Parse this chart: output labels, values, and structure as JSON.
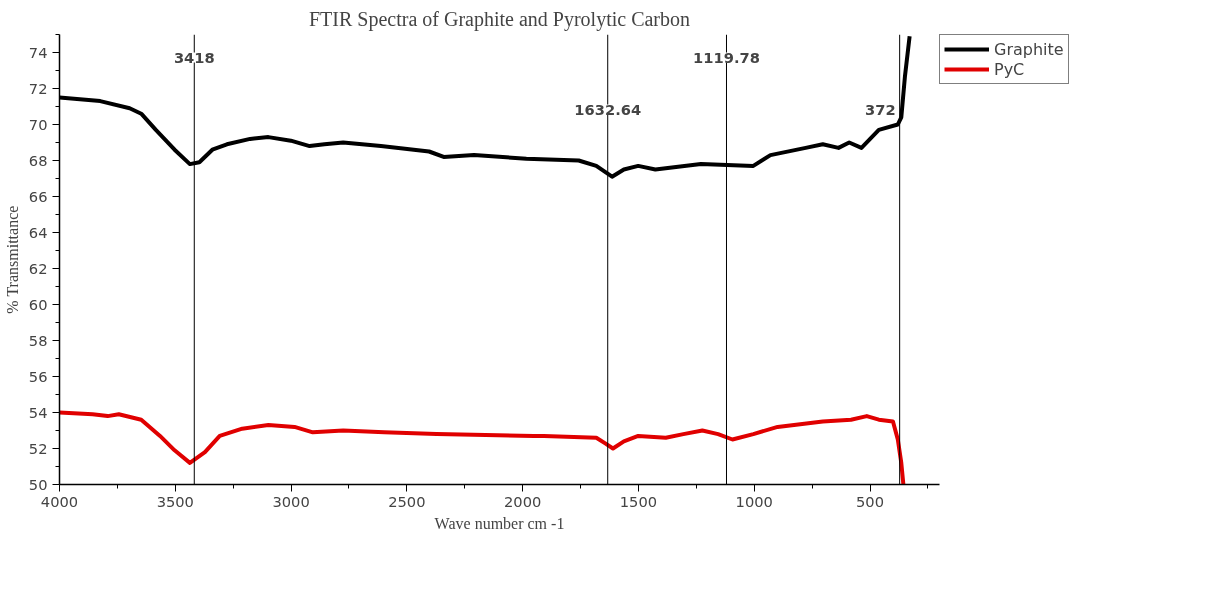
{
  "chart_data": {
    "type": "line",
    "title": "FTIR Spectra of Graphite and Pyrolytic Carbon",
    "xlabel": "Wave number cm -1",
    "ylabel": "% Transmittance",
    "xlim": [
      4000,
      200
    ],
    "ylim": [
      50,
      75
    ],
    "xticks": [
      4000,
      3500,
      3000,
      2500,
      2000,
      1500,
      1000,
      500
    ],
    "yticks": [
      50,
      52,
      54,
      56,
      58,
      60,
      62,
      64,
      66,
      68,
      70,
      72,
      74
    ],
    "grid": false,
    "legend": "top right",
    "line_style": "solid",
    "marker": "none",
    "ref_lines": [
      {
        "axis": "x",
        "value": 3418,
        "label": "3418"
      },
      {
        "axis": "x",
        "value": 1632.64,
        "label": "1632.64"
      },
      {
        "axis": "x",
        "value": 1119.78,
        "label": "1119.78"
      },
      {
        "axis": "x",
        "value": 372,
        "label": "372"
      }
    ],
    "series": [
      {
        "name": "Graphite",
        "color": "#000000",
        "x": [
          4000,
          3824,
          3697,
          3647,
          3584,
          3503,
          3437,
          3396,
          3340,
          3277,
          3177,
          3098,
          3001,
          2920,
          2856,
          2775,
          2612,
          2404,
          2341,
          2210,
          1984,
          1758,
          1682,
          1614,
          1563,
          1501,
          1427,
          1230,
          1004,
          930,
          778,
          704,
          636,
          590,
          537,
          462,
          380,
          365,
          349,
          329
        ],
        "values": [
          71.5,
          71.3,
          70.9,
          70.6,
          69.7,
          68.6,
          67.8,
          67.9,
          68.6,
          68.9,
          69.2,
          69.3,
          69.1,
          68.8,
          68.9,
          69.0,
          68.8,
          68.5,
          68.2,
          68.3,
          68.1,
          68.0,
          67.7,
          67.1,
          67.5,
          67.7,
          67.5,
          67.8,
          67.7,
          68.3,
          68.7,
          68.9,
          68.7,
          69.0,
          68.7,
          69.7,
          70.0,
          70.4,
          72.7,
          74.9
        ]
      },
      {
        "name": "PyC",
        "color": "#e00000",
        "x": [
          4000,
          3857,
          3792,
          3744,
          3647,
          3566,
          3503,
          3437,
          3372,
          3308,
          3211,
          3098,
          2985,
          2906,
          2775,
          2598,
          2372,
          1952,
          1908,
          1682,
          1645,
          1610,
          1563,
          1501,
          1382,
          1306,
          1224,
          1156,
          1094,
          1004,
          899,
          704,
          582,
          514,
          462,
          401,
          380,
          365,
          356
        ],
        "values": [
          54.0,
          53.9,
          53.8,
          53.9,
          53.6,
          52.7,
          51.9,
          51.2,
          51.8,
          52.7,
          53.1,
          53.3,
          53.2,
          52.9,
          53.0,
          52.9,
          52.8,
          52.7,
          52.7,
          52.6,
          52.3,
          52.0,
          52.4,
          52.7,
          52.6,
          52.8,
          53.0,
          52.8,
          52.5,
          52.8,
          53.2,
          53.5,
          53.6,
          53.8,
          53.6,
          53.5,
          52.5,
          51.2,
          50.0
        ]
      }
    ]
  }
}
